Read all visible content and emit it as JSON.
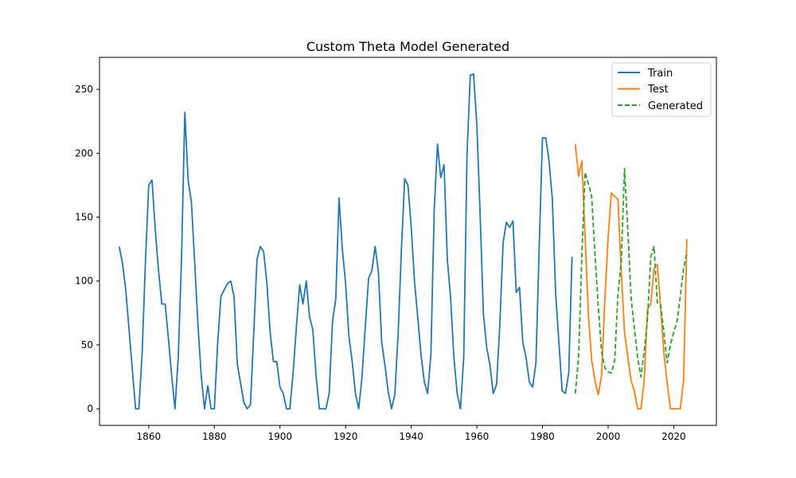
{
  "chart_data": {
    "type": "line",
    "title": "Custom Theta Model Generated",
    "xlabel": "",
    "ylabel": "",
    "xlim": [
      1845,
      2033
    ],
    "ylim": [
      -13,
      275
    ],
    "x_ticks": [
      1860,
      1880,
      1900,
      1920,
      1940,
      1960,
      1980,
      2000,
      2020
    ],
    "y_ticks": [
      0,
      50,
      100,
      150,
      200,
      250
    ],
    "grid": false,
    "legend_position": "top-right",
    "series": [
      {
        "name": "Train",
        "color": "#1f77b4",
        "style": "solid",
        "x": [
          1851,
          1852,
          1853,
          1854,
          1855,
          1856,
          1857,
          1858,
          1859,
          1860,
          1861,
          1862,
          1863,
          1864,
          1865,
          1866,
          1867,
          1868,
          1869,
          1870,
          1871,
          1872,
          1873,
          1874,
          1875,
          1876,
          1877,
          1878,
          1879,
          1880,
          1881,
          1882,
          1883,
          1884,
          1885,
          1886,
          1887,
          1888,
          1889,
          1890,
          1891,
          1892,
          1893,
          1894,
          1895,
          1896,
          1897,
          1898,
          1899,
          1900,
          1901,
          1902,
          1903,
          1904,
          1905,
          1906,
          1907,
          1908,
          1909,
          1910,
          1911,
          1912,
          1913,
          1914,
          1915,
          1916,
          1917,
          1918,
          1919,
          1920,
          1921,
          1922,
          1923,
          1924,
          1925,
          1926,
          1927,
          1928,
          1929,
          1930,
          1931,
          1932,
          1933,
          1934,
          1935,
          1936,
          1937,
          1938,
          1939,
          1940,
          1941,
          1942,
          1943,
          1944,
          1945,
          1946,
          1947,
          1948,
          1949,
          1950,
          1951,
          1952,
          1953,
          1954,
          1955,
          1956,
          1957,
          1958,
          1959,
          1960,
          1961,
          1962,
          1963,
          1964,
          1965,
          1966,
          1967,
          1968,
          1969,
          1970,
          1971,
          1972,
          1973,
          1974,
          1975,
          1976,
          1977,
          1978,
          1979,
          1980,
          1981,
          1982,
          1983,
          1984,
          1985,
          1986,
          1987,
          1988,
          1989
        ],
        "values": [
          127,
          114,
          93,
          62,
          31,
          0,
          0,
          44,
          115,
          175,
          179,
          140,
          108,
          82,
          82,
          55,
          26,
          0,
          40,
          118,
          232,
          179,
          162,
          115,
          66,
          26,
          0,
          18,
          0,
          0,
          51,
          88,
          93,
          98,
          100,
          88,
          35,
          20,
          5,
          0,
          3,
          59,
          117,
          127,
          123,
          99,
          60,
          37,
          37,
          17,
          12,
          0,
          0,
          28,
          64,
          97,
          82,
          100,
          72,
          62,
          26,
          0,
          0,
          0,
          12,
          68,
          86,
          165,
          125,
          98,
          57,
          37,
          12,
          0,
          25,
          64,
          102,
          108,
          127,
          107,
          52,
          34,
          13,
          0,
          11,
          58,
          124,
          180,
          175,
          142,
          100,
          71,
          42,
          21,
          12,
          43,
          155,
          207,
          181,
          191,
          117,
          87,
          40,
          12,
          0,
          40,
          199,
          261,
          262,
          222,
          152,
          74,
          48,
          34,
          12,
          19,
          66,
          130,
          146,
          142,
          147,
          91,
          95,
          52,
          40,
          21,
          17,
          36,
          127,
          212,
          212,
          194,
          164,
          91,
          52,
          14,
          12,
          28,
          119
        ]
      },
      {
        "name": "Test",
        "color": "#ff7f0e",
        "style": "solid",
        "x": [
          1990,
          1991,
          1992,
          1993,
          1994,
          1995,
          1996,
          1997,
          1998,
          1999,
          2000,
          2001,
          2002,
          2003,
          2004,
          2005,
          2006,
          2007,
          2008,
          2009,
          2010,
          2011,
          2012,
          2013,
          2014,
          2015,
          2016,
          2017,
          2018,
          2019,
          2020,
          2021,
          2022,
          2023,
          2024
        ],
        "values": [
          207,
          182,
          194,
          134,
          73,
          38,
          22,
          11,
          26,
          85,
          134,
          169,
          166,
          164,
          108,
          60,
          41,
          22,
          14,
          0,
          0,
          22,
          78,
          82,
          110,
          113,
          79,
          44,
          20,
          0,
          0,
          0,
          0,
          22,
          133
        ]
      },
      {
        "name": "Generated",
        "color": "#2ca02c",
        "style": "dashed",
        "x": [
          1990,
          1991,
          1992,
          1993,
          1994,
          1995,
          1996,
          1997,
          1998,
          1999,
          2000,
          2001,
          2002,
          2003,
          2004,
          2005,
          2006,
          2007,
          2008,
          2009,
          2010,
          2011,
          2012,
          2013,
          2014,
          2015,
          2016,
          2017,
          2018,
          2019,
          2020,
          2021,
          2022,
          2023,
          2024
        ],
        "values": [
          12,
          40,
          120,
          185,
          176,
          166,
          120,
          80,
          45,
          32,
          29,
          28,
          38,
          90,
          115,
          188,
          140,
          87,
          63,
          40,
          25,
          45,
          70,
          119,
          127,
          83,
          82,
          60,
          36,
          50,
          60,
          68,
          88,
          110,
          122
        ]
      }
    ]
  }
}
